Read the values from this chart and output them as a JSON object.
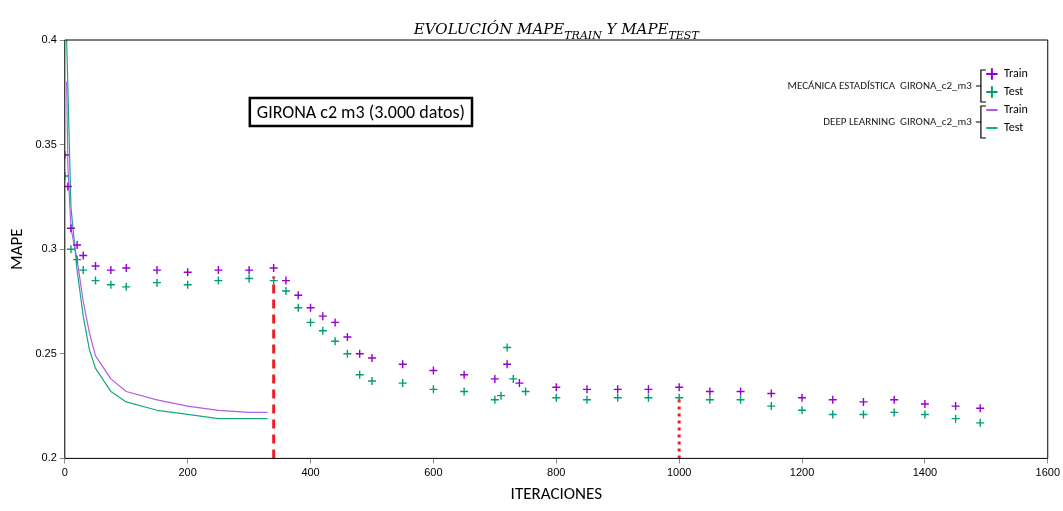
{
  "chart_data": {
    "type": "scatter",
    "title": "EVOLUCIÓN MAPE$_{TRAIN}$ Y MAPE$_{TEST}$",
    "xlabel": "ITERACIONES",
    "ylabel": "MAPE",
    "xlim": [
      0,
      1600
    ],
    "xticks": [
      0,
      200,
      400,
      600,
      800,
      1000,
      1200,
      1400,
      1600
    ],
    "ylim": [
      0.2,
      0.4
    ],
    "yticks": [
      0.2,
      0.25,
      0.3,
      0.35,
      0.4
    ],
    "grid": false,
    "legend": "top right",
    "annotations": [
      "GIRONA c2 m3 (3.000 datos)",
      "MECÁNICA ESTADÍSTICA  GIRONA_c2_m3",
      "DEEP LEARNING  GIRONA_c2_m3"
    ],
    "series": [
      {
        "name": "Train",
        "marker": "cross",
        "color": "#9400d3",
        "x": [
          0,
          5,
          10,
          20,
          30,
          50,
          75,
          100,
          150,
          200,
          250,
          300,
          340,
          360,
          380,
          400,
          420,
          440,
          460,
          480,
          500,
          550,
          600,
          650,
          700,
          720,
          740,
          800,
          850,
          900,
          950,
          1000,
          1050,
          1100,
          1150,
          1200,
          1250,
          1300,
          1350,
          1400,
          1450,
          1490
        ],
        "values": [
          0.345,
          0.33,
          0.31,
          0.302,
          0.297,
          0.292,
          0.29,
          0.291,
          0.29,
          0.289,
          0.29,
          0.29,
          0.291,
          0.285,
          0.278,
          0.272,
          0.268,
          0.265,
          0.258,
          0.25,
          0.248,
          0.245,
          0.242,
          0.24,
          0.238,
          0.245,
          0.236,
          0.234,
          0.233,
          0.233,
          0.233,
          0.234,
          0.232,
          0.232,
          0.231,
          0.229,
          0.228,
          0.227,
          0.228,
          0.226,
          0.225,
          0.224
        ]
      },
      {
        "name": "Test",
        "marker": "cross",
        "color": "#009e73",
        "x": [
          0,
          10,
          20,
          30,
          50,
          75,
          100,
          150,
          200,
          250,
          300,
          340,
          360,
          380,
          400,
          420,
          440,
          460,
          480,
          500,
          550,
          600,
          650,
          700,
          710,
          720,
          730,
          750,
          800,
          850,
          900,
          950,
          1000,
          1050,
          1100,
          1150,
          1200,
          1250,
          1300,
          1350,
          1400,
          1450,
          1490
        ],
        "values": [
          0.335,
          0.3,
          0.295,
          0.29,
          0.285,
          0.283,
          0.282,
          0.284,
          0.283,
          0.285,
          0.286,
          0.285,
          0.28,
          0.272,
          0.265,
          0.261,
          0.256,
          0.25,
          0.24,
          0.237,
          0.236,
          0.233,
          0.232,
          0.228,
          0.23,
          0.253,
          0.238,
          0.232,
          0.229,
          0.228,
          0.229,
          0.229,
          0.229,
          0.228,
          0.228,
          0.225,
          0.223,
          0.221,
          0.221,
          0.222,
          0.221,
          0.219,
          0.217
        ]
      },
      {
        "name": "Train",
        "type": "line",
        "marker": "none",
        "color": "#b25de8",
        "x": [
          3,
          5,
          10,
          20,
          30,
          40,
          50,
          75,
          100,
          150,
          200,
          250,
          300,
          330
        ],
        "values": [
          0.38,
          0.34,
          0.31,
          0.295,
          0.275,
          0.26,
          0.249,
          0.238,
          0.232,
          0.228,
          0.225,
          0.223,
          0.222,
          0.222
        ]
      },
      {
        "name": "Test",
        "type": "line",
        "marker": "none",
        "color": "#16a883",
        "x": [
          3,
          10,
          20,
          30,
          40,
          50,
          75,
          100,
          150,
          200,
          250,
          300,
          330
        ],
        "values": [
          0.4,
          0.32,
          0.29,
          0.268,
          0.252,
          0.243,
          0.232,
          0.227,
          0.223,
          0.221,
          0.219,
          0.219,
          0.219
        ]
      },
      {
        "type": "line",
        "marker": "none",
        "line_style": "dashed",
        "color": "#ee1c25",
        "x": [
          340,
          340
        ],
        "values": [
          0.2,
          0.287
        ]
      },
      {
        "type": "line",
        "marker": "none",
        "line_style": "dotted",
        "color": "#ee1c25",
        "x": [
          1000,
          1000
        ],
        "values": [
          0.2,
          0.229
        ]
      }
    ]
  }
}
